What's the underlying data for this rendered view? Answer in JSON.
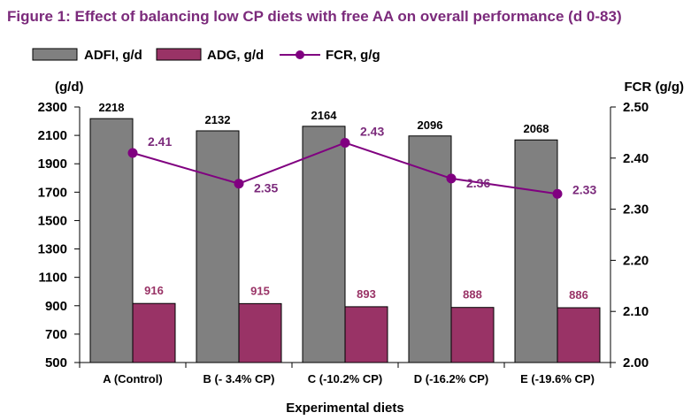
{
  "chart_data": {
    "type": "bar",
    "title": "Figure 1: Effect of balancing low CP diets with free AA on overall performance (d 0-83)",
    "xlabel": "Experimental diets",
    "ylabel": "(g/d)",
    "y2label": "FCR (g/g)",
    "categories": [
      "A (Control)",
      "B (- 3.4% CP)",
      "C (-10.2% CP)",
      "D (-16.2% CP)",
      "E (-19.6% CP)"
    ],
    "ylim": [
      500,
      2300
    ],
    "y_ticks": [
      500,
      700,
      900,
      1100,
      1300,
      1500,
      1700,
      1900,
      2100,
      2300
    ],
    "y2lim": [
      2.0,
      2.5
    ],
    "y2_ticks": [
      "2.00",
      "2.10",
      "2.20",
      "2.30",
      "2.40",
      "2.50"
    ],
    "legend_position": "top-left",
    "grid": false,
    "series": [
      {
        "name": "ADFI, g/d",
        "type": "bar",
        "axis": "left",
        "color": "#808080",
        "values": [
          2218,
          2132,
          2164,
          2096,
          2068
        ]
      },
      {
        "name": "ADG, g/d",
        "type": "bar",
        "axis": "left",
        "color": "#993366",
        "values": [
          916,
          915,
          893,
          888,
          886
        ]
      },
      {
        "name": "FCR, g/g",
        "type": "line",
        "axis": "right",
        "color": "#800080",
        "values": [
          2.41,
          2.35,
          2.43,
          2.36,
          2.33
        ]
      }
    ],
    "colors": {
      "title": "#7b2a7b",
      "fcr_label": "#7b2a7b",
      "adg_label": "#993366",
      "axis": "#000000"
    }
  }
}
